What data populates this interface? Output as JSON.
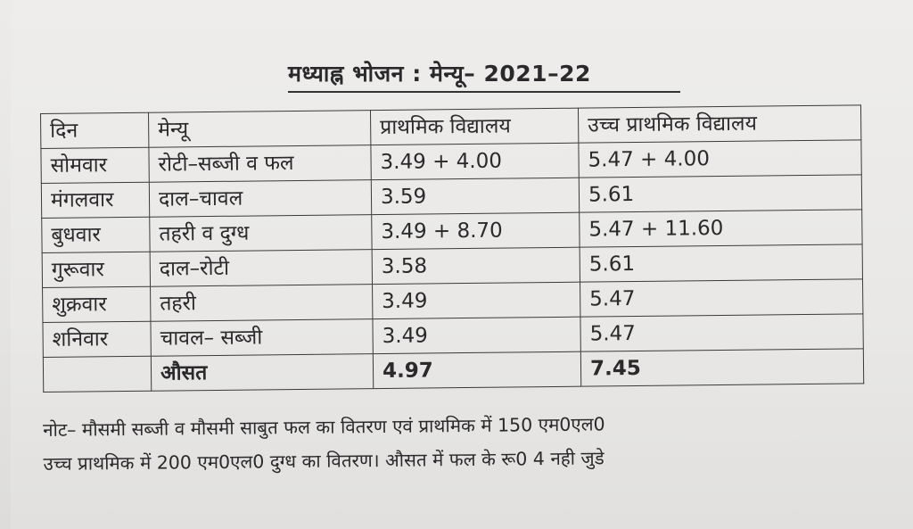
{
  "title": "मध्याह्न भोजन : मेन्यू– 2021–22",
  "table": {
    "headers": [
      "दिन",
      "मेन्यू",
      "प्राथमिक विद्यालय",
      "उच्च प्राथमिक विद्यालय"
    ],
    "rows": [
      [
        "सोमवार",
        "रोटी–सब्जी व फल",
        "3.49 + 4.00",
        "5.47 + 4.00"
      ],
      [
        "मंगलवार",
        "दाल–चावल",
        "3.59",
        "5.61"
      ],
      [
        "बुधवार",
        "तहरी व दुग्ध",
        "3.49 + 8.70",
        "5.47 + 11.60"
      ],
      [
        "गुरूवार",
        "दाल–रोटी",
        "3.58",
        "5.61"
      ],
      [
        "शुक्रवार",
        "तहरी",
        "3.49",
        "5.47"
      ],
      [
        "शनिवार",
        "चावल– सब्जी",
        "3.49",
        "5.47"
      ]
    ],
    "average": [
      "",
      "औसत",
      "4.97",
      "7.45"
    ]
  },
  "note": {
    "line1": "नोट– मौसमी सब्जी व मौसमी साबुत फल का वितरण एवं प्राथमिक में 150 एम0एल0",
    "line2": "उच्च प्राथमिक में 200 एम0एल0 दुग्ध का वितरण। औसत में फल के रू0 4 नही जुडे"
  }
}
